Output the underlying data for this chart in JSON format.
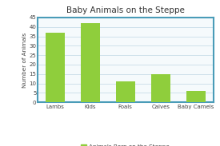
{
  "title": "Baby Animals on the Steppe",
  "categories": [
    "Lambs",
    "Kids",
    "Foals",
    "Calves",
    "Baby Camels"
  ],
  "values": [
    37,
    42,
    11,
    15,
    6
  ],
  "bar_color": "#8fce3c",
  "ylabel": "Number of Animals",
  "ylim": [
    0,
    45
  ],
  "yticks": [
    0,
    5,
    10,
    15,
    20,
    25,
    30,
    35,
    40,
    45
  ],
  "legend_label": "Animals Born on the Steppe",
  "border_color": "#4a9cb8",
  "plot_bg_color": "#f5fafc",
  "fig_bg_color": "#ffffff",
  "grid_color": "#c8dde8",
  "title_fontsize": 7.5,
  "axis_label_fontsize": 5.2,
  "tick_fontsize": 5.0,
  "legend_fontsize": 5.2,
  "bar_width": 0.55
}
